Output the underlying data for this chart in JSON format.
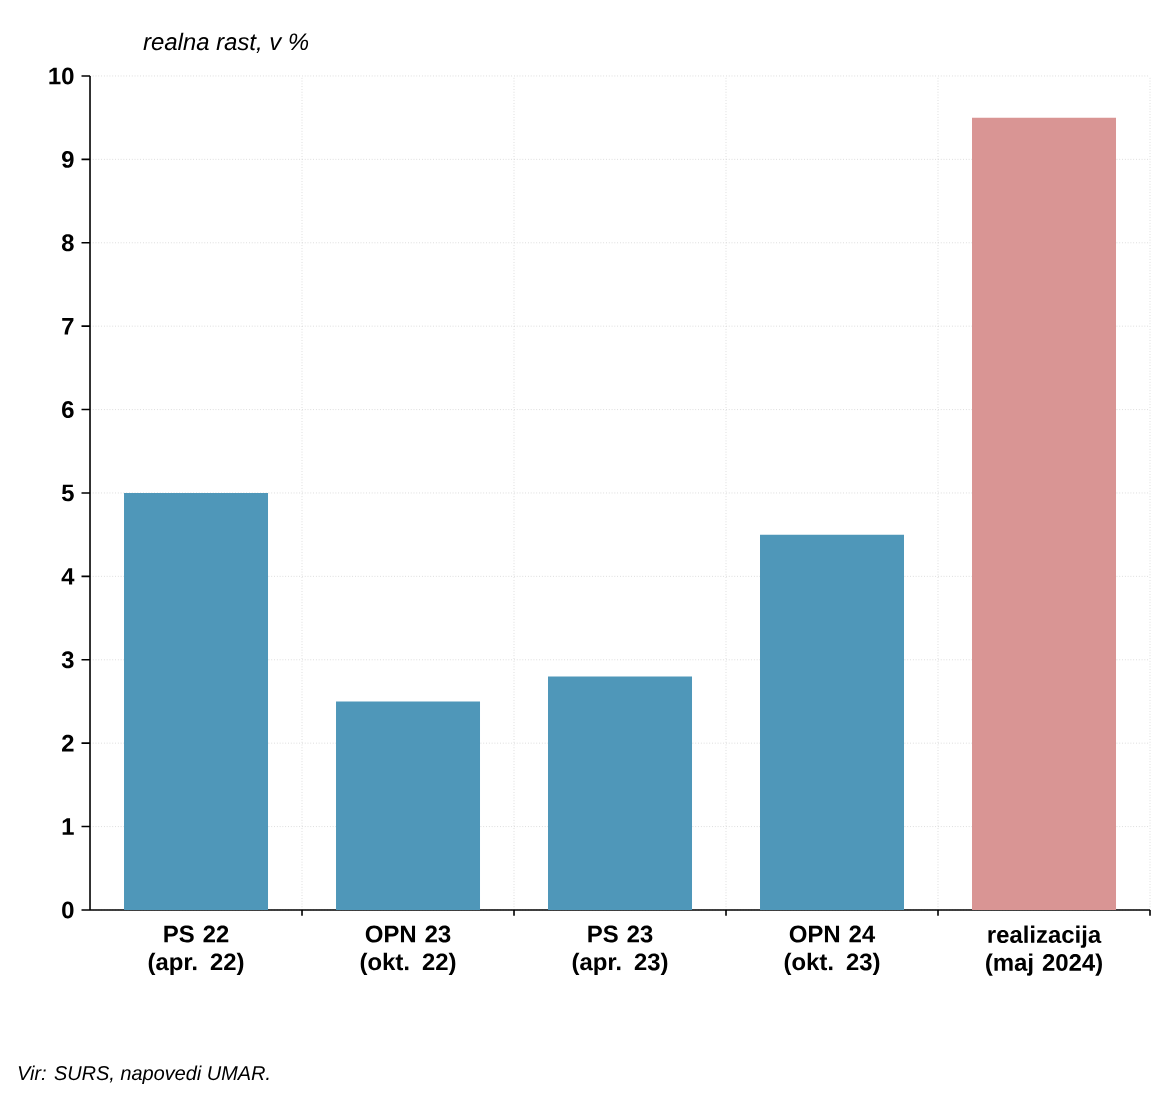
{
  "chart_data": {
    "type": "bar",
    "ylabel": "realna rast, v %",
    "categories": [
      "PS 22 (apr. 22)",
      "OPN 23 (okt. 22)",
      "PS 23 (apr. 23)",
      "OPN 24 (okt. 23)",
      "realizacija (maj 2024)"
    ],
    "values": [
      5.0,
      2.5,
      2.8,
      4.5,
      9.5
    ],
    "colors": [
      "#4f97b9",
      "#4f97b9",
      "#4f97b9",
      "#4f97b9",
      "#d99594"
    ],
    "ylim": [
      0,
      10
    ],
    "yticks": [
      0,
      1,
      2,
      3,
      4,
      5,
      6,
      7,
      8,
      9,
      10
    ],
    "grid": true,
    "annotations": [
      "Vir: SURS, napovedi UMAR."
    ]
  }
}
